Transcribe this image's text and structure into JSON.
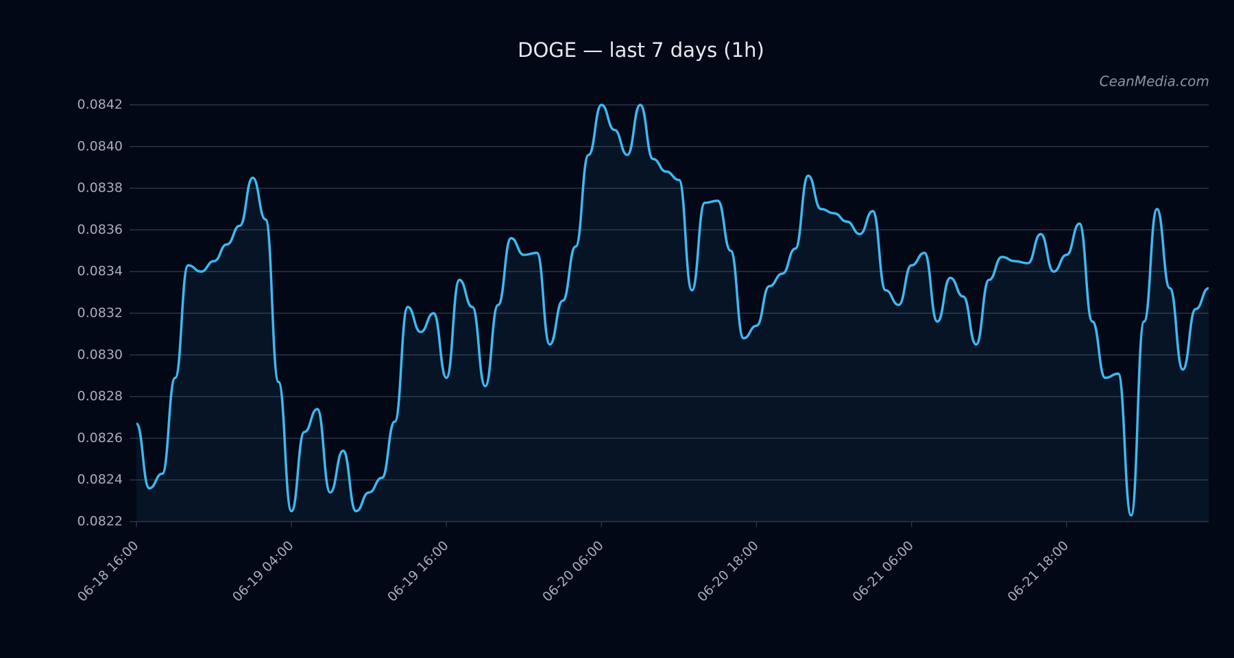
{
  "chart_data": {
    "type": "line",
    "title": "DOGE — last 7 days (1h)",
    "watermark": "CeanMedia.com",
    "categories": [
      "06-18 16:00",
      null,
      null,
      null,
      null,
      null,
      null,
      null,
      null,
      null,
      null,
      null,
      "06-19 04:00",
      null,
      null,
      null,
      null,
      null,
      null,
      null,
      null,
      null,
      null,
      null,
      "06-19 16:00",
      null,
      null,
      null,
      null,
      null,
      null,
      null,
      null,
      null,
      null,
      null,
      "06-20 06:00",
      null,
      null,
      null,
      null,
      null,
      null,
      null,
      null,
      null,
      null,
      null,
      "06-20 18:00",
      null,
      null,
      null,
      null,
      null,
      null,
      null,
      null,
      null,
      null,
      null,
      "06-21 06:00",
      null,
      null,
      null,
      null,
      null,
      null,
      null,
      null,
      null,
      null,
      null,
      "06-21 18:00",
      null,
      null,
      null,
      null,
      null,
      null,
      null,
      null,
      null,
      null,
      null
    ],
    "series": [
      {
        "name": "DOGE",
        "color": "#3db9f2",
        "values": [
          0.08267,
          0.08236,
          0.08243,
          0.08289,
          0.08343,
          0.0834,
          0.08345,
          0.08353,
          0.08362,
          0.08385,
          0.08365,
          0.08287,
          0.08225,
          0.08263,
          0.08274,
          0.08234,
          0.08254,
          0.08225,
          0.08234,
          0.08241,
          0.08268,
          0.08323,
          0.08311,
          0.0832,
          0.08289,
          0.08336,
          0.08323,
          0.08285,
          0.08324,
          0.08356,
          0.08348,
          0.08349,
          0.08305,
          0.08326,
          0.08352,
          0.08396,
          0.0842,
          0.08408,
          0.08396,
          0.0842,
          0.08394,
          0.08388,
          0.08384,
          0.08331,
          0.08373,
          0.08374,
          0.0835,
          0.08308,
          0.08314,
          0.08333,
          0.08339,
          0.08351,
          0.08386,
          0.0837,
          0.08368,
          0.08364,
          0.08358,
          0.08369,
          0.08331,
          0.08324,
          0.08343,
          0.08349,
          0.08316,
          0.08337,
          0.08328,
          0.08305,
          0.08336,
          0.08347,
          0.08345,
          0.08344,
          0.08358,
          0.0834,
          0.08348,
          0.08363,
          0.08316,
          0.08289,
          0.08291,
          0.08223,
          0.08316,
          0.0837,
          0.08332,
          0.08293,
          0.08322,
          0.08332
        ]
      }
    ],
    "ylim": [
      0.0822,
      0.0842
    ],
    "yticks": [
      {
        "value": 0.0822,
        "label": "0.0822"
      },
      {
        "value": 0.0824,
        "label": "0.0824"
      },
      {
        "value": 0.0826,
        "label": "0.0826"
      },
      {
        "value": 0.0828,
        "label": "0.0828"
      },
      {
        "value": 0.083,
        "label": "0.0830"
      },
      {
        "value": 0.0832,
        "label": "0.0832"
      },
      {
        "value": 0.0834,
        "label": "0.0834"
      },
      {
        "value": 0.0836,
        "label": "0.0836"
      },
      {
        "value": 0.0838,
        "label": "0.0838"
      },
      {
        "value": 0.084,
        "label": "0.0840"
      },
      {
        "value": 0.0842,
        "label": "0.0842"
      }
    ],
    "grid": true,
    "area_fill": true
  }
}
